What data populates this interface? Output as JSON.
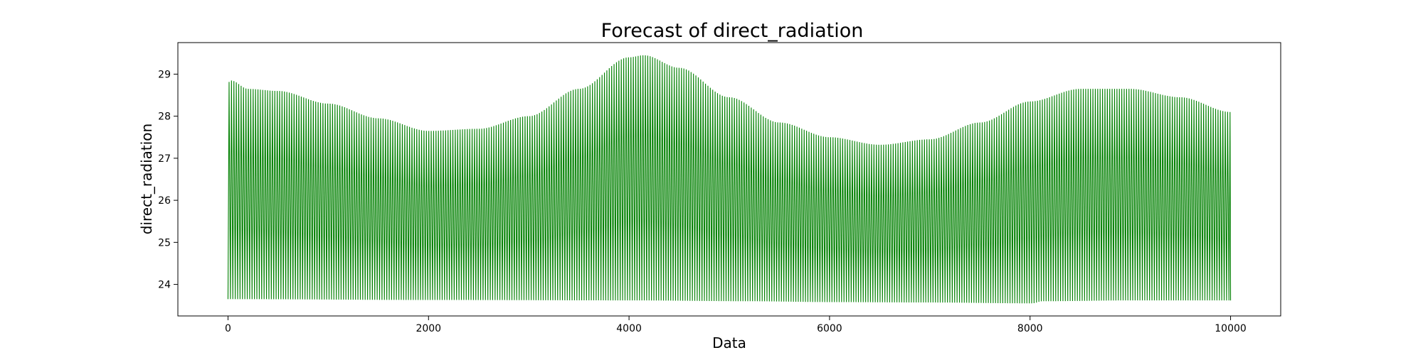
{
  "chart_data": {
    "type": "line",
    "title": "Forecast of direct_radiation",
    "xlabel": "Data",
    "ylabel": "direct_radiation",
    "xlim": [
      -500,
      10500
    ],
    "ylim": [
      23.25,
      29.75
    ],
    "xticks": [
      0,
      2000,
      4000,
      6000,
      8000,
      10000
    ],
    "yticks": [
      24,
      25,
      26,
      27,
      28,
      29
    ],
    "grid": false,
    "legend": "none",
    "series": [
      {
        "color": "#008000",
        "x_range": [
          0,
          10000
        ],
        "cycle_length": 24,
        "description_peaks": [
          {
            "x": 0,
            "y": 28.8
          },
          {
            "x": 30,
            "y": 28.85
          },
          {
            "x": 200,
            "y": 28.65
          },
          {
            "x": 500,
            "y": 28.6
          },
          {
            "x": 1000,
            "y": 28.3
          },
          {
            "x": 1500,
            "y": 27.95
          },
          {
            "x": 2000,
            "y": 27.65
          },
          {
            "x": 2500,
            "y": 27.7
          },
          {
            "x": 3000,
            "y": 28.0
          },
          {
            "x": 3500,
            "y": 28.65
          },
          {
            "x": 4000,
            "y": 29.4
          },
          {
            "x": 4150,
            "y": 29.45
          },
          {
            "x": 4500,
            "y": 29.15
          },
          {
            "x": 5000,
            "y": 28.45
          },
          {
            "x": 5500,
            "y": 27.85
          },
          {
            "x": 6000,
            "y": 27.5
          },
          {
            "x": 6500,
            "y": 27.32
          },
          {
            "x": 7000,
            "y": 27.45
          },
          {
            "x": 7500,
            "y": 27.85
          },
          {
            "x": 8000,
            "y": 28.35
          },
          {
            "x": 8500,
            "y": 28.65
          },
          {
            "x": 9000,
            "y": 28.65
          },
          {
            "x": 9500,
            "y": 28.45
          },
          {
            "x": 10000,
            "y": 28.1
          }
        ],
        "description_troughs": [
          {
            "x": 0,
            "y": 23.65
          },
          {
            "x": 2000,
            "y": 23.63
          },
          {
            "x": 4000,
            "y": 23.62
          },
          {
            "x": 5200,
            "y": 23.6
          },
          {
            "x": 6000,
            "y": 23.58
          },
          {
            "x": 7000,
            "y": 23.57
          },
          {
            "x": 8000,
            "y": 23.55
          },
          {
            "x": 8100,
            "y": 23.6
          },
          {
            "x": 9000,
            "y": 23.62
          },
          {
            "x": 10000,
            "y": 23.62
          }
        ]
      }
    ]
  }
}
